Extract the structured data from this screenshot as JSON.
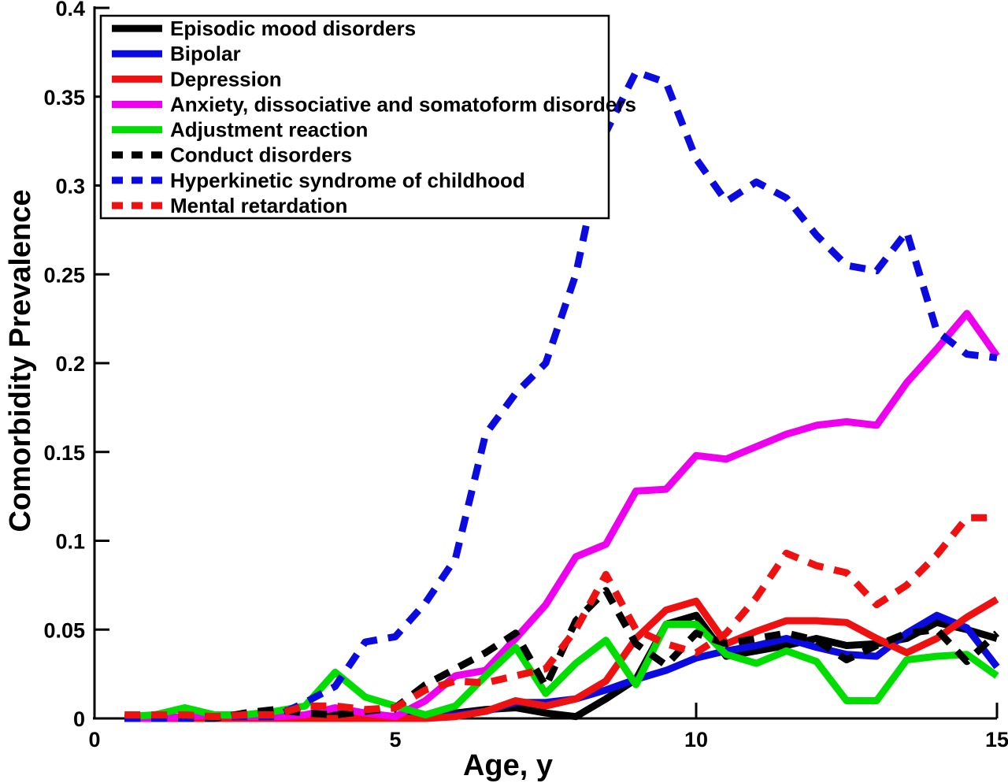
{
  "figure": {
    "background": "#ffffff",
    "xlabel": "Age, y",
    "ylabel": "Comorbidity Prevalence"
  },
  "chart_data": {
    "type": "line",
    "title": "",
    "xlabel": "Age, y",
    "ylabel": "Comorbidity Prevalence",
    "xlim": [
      0,
      15
    ],
    "ylim": [
      0,
      0.4
    ],
    "x_tick_labels": [
      "0",
      "5",
      "10",
      "15"
    ],
    "x_tick_values": [
      0,
      5,
      10,
      15
    ],
    "y_tick_labels": [
      "0",
      "0.05",
      "0.1",
      "0.15",
      "0.2",
      "0.25",
      "0.3",
      "0.35",
      "0.4"
    ],
    "y_tick_values": [
      0,
      0.05,
      0.1,
      0.15,
      0.2,
      0.25,
      0.3,
      0.35,
      0.4
    ],
    "grid": false,
    "legend_position": "top-left",
    "axis_color": "#000000",
    "x": [
      0.5,
      1,
      1.5,
      2,
      2.5,
      3,
      3.5,
      4,
      4.5,
      5,
      5.5,
      6,
      6.5,
      7,
      7.5,
      8,
      8.5,
      9,
      9.5,
      10,
      10.5,
      11,
      11.5,
      12,
      12.5,
      13,
      13.5,
      14,
      14.5,
      15
    ],
    "series": [
      {
        "name": "Episodic mood disorders",
        "color": "#000000",
        "line_style": "solid",
        "values": [
          0,
          0,
          0,
          0,
          0.001,
          0.001,
          0.001,
          0.002,
          0.001,
          0.001,
          0.002,
          0.003,
          0.005,
          0.006,
          0.003,
          0.001,
          0.011,
          0.022,
          0.053,
          0.058,
          0.035,
          0.038,
          0.041,
          0.045,
          0.041,
          0.042,
          0.045,
          0.054,
          0.05,
          0.045
        ]
      },
      {
        "name": "Bipolar",
        "color": "#0b0bdf",
        "line_style": "solid",
        "values": [
          0,
          0,
          0,
          0,
          0,
          0,
          0,
          0,
          0,
          0,
          0.001,
          0.002,
          0.004,
          0.009,
          0.009,
          0.011,
          0.016,
          0.022,
          0.027,
          0.034,
          0.038,
          0.041,
          0.045,
          0.04,
          0.036,
          0.035,
          0.048,
          0.058,
          0.051,
          0.029
        ]
      },
      {
        "name": "Depression",
        "color": "#ee1111",
        "line_style": "solid",
        "values": [
          0,
          0,
          0,
          0,
          0,
          0,
          0,
          0,
          0,
          0,
          0,
          0.001,
          0.004,
          0.01,
          0.007,
          0.011,
          0.021,
          0.045,
          0.061,
          0.066,
          0.042,
          0.049,
          0.055,
          0.055,
          0.054,
          0.045,
          0.037,
          0.045,
          0.057,
          0.067
        ]
      },
      {
        "name": "Anxiety, dissociative and somatoform disorders",
        "color": "#ee00ee",
        "line_style": "solid",
        "values": [
          0,
          0,
          0.001,
          0.002,
          0.001,
          0.001,
          0.002,
          0.006,
          0.003,
          0.001,
          0.01,
          0.024,
          0.027,
          0.045,
          0.064,
          0.091,
          0.098,
          0.128,
          0.129,
          0.148,
          0.146,
          0.153,
          0.16,
          0.165,
          0.167,
          0.165,
          0.189,
          0.208,
          0.228,
          0.204
        ]
      },
      {
        "name": "Adjustment reaction",
        "color": "#00dd00",
        "line_style": "solid",
        "values": [
          0.001,
          0.002,
          0.006,
          0.002,
          0.002,
          0.004,
          0.007,
          0.026,
          0.012,
          0.007,
          0.002,
          0.007,
          0.024,
          0.04,
          0.014,
          0.031,
          0.044,
          0.019,
          0.053,
          0.053,
          0.036,
          0.031,
          0.038,
          0.032,
          0.01,
          0.01,
          0.033,
          0.035,
          0.036,
          0.024
        ]
      },
      {
        "name": "Conduct disorders",
        "color": "#000000",
        "line_style": "dashed",
        "values": [
          0,
          0,
          0,
          0,
          0.003,
          0.005,
          0.003,
          0.002,
          0.004,
          0.006,
          0.019,
          0.028,
          0.037,
          0.048,
          0.018,
          0.055,
          0.072,
          0.042,
          0.03,
          0.048,
          0.042,
          0.045,
          0.048,
          0.044,
          0.033,
          0.041,
          0.048,
          0.05,
          0.032,
          0.048
        ]
      },
      {
        "name": "Hyperkinetic syndrome of childhood",
        "color": "#0b0bdf",
        "line_style": "dashed",
        "values": [
          0,
          0,
          0,
          0.001,
          0.001,
          0.001,
          0.009,
          0.018,
          0.043,
          0.046,
          0.065,
          0.09,
          0.16,
          0.183,
          0.2,
          0.25,
          0.33,
          0.364,
          0.358,
          0.315,
          0.291,
          0.302,
          0.293,
          0.272,
          0.255,
          0.252,
          0.274,
          0.218,
          0.205,
          0.203
        ]
      },
      {
        "name": "Mental retardation",
        "color": "#ee1111",
        "line_style": "dashed",
        "values": [
          0.002,
          0.002,
          0.002,
          0.001,
          0.002,
          0.002,
          0.007,
          0.007,
          0.005,
          0.006,
          0.016,
          0.021,
          0.02,
          0.024,
          0.028,
          0.05,
          0.081,
          0.05,
          0.042,
          0.037,
          0.048,
          0.068,
          0.093,
          0.086,
          0.082,
          0.064,
          0.075,
          0.092,
          0.113,
          0.113
        ]
      }
    ]
  }
}
